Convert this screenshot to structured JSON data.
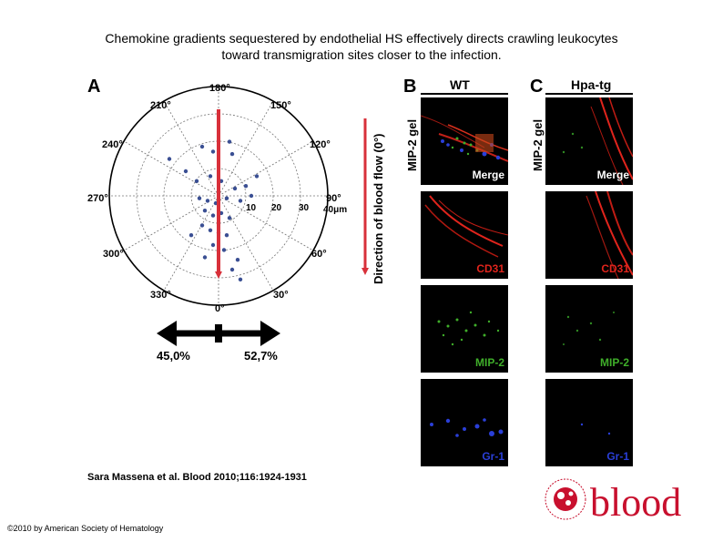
{
  "title": {
    "line1": "Chemokine gradients sequestered by endothelial HS effectively directs crawling leukocytes",
    "line2": "toward transmigration sites closer to the infection."
  },
  "panel_a": {
    "letter": "A",
    "angle_labels": [
      "180°",
      "150°",
      "120°",
      "90°",
      "60°",
      "30°",
      "0°",
      "330°",
      "300°",
      "270°",
      "240°",
      "210°"
    ],
    "radial_labels": [
      "10",
      "20",
      "30",
      "40μm"
    ],
    "flow_label": "Direction of blood flow (0°)",
    "left_percent": "45,0%",
    "right_percent": "52,7%",
    "points_note": "scatter of leukocyte end positions (μm)"
  },
  "panel_b": {
    "letter": "B",
    "genotype": "WT",
    "side_label": "MIP-2 gel",
    "channels": [
      "Merge",
      "CD31",
      "MIP-2",
      "Gr-1"
    ]
  },
  "panel_c": {
    "letter": "C",
    "genotype": "Hpa-tg",
    "side_label": "MIP-2 gel",
    "channels": [
      "Merge",
      "CD31",
      "MIP-2",
      "Gr-1"
    ]
  },
  "citation": "Sara Massena et al. Blood 2010;116:1924-1931",
  "copyright": "©2010 by American Society of Hematology",
  "logo_text": "blood",
  "colors": {
    "arrow_red": "#d8303a",
    "point_blue": "#3a4f93",
    "cd31_red": "#e0241c",
    "mip2_green": "#3fae2a",
    "gr1_blue": "#2a3fd8",
    "logo_red": "#c8102e"
  }
}
